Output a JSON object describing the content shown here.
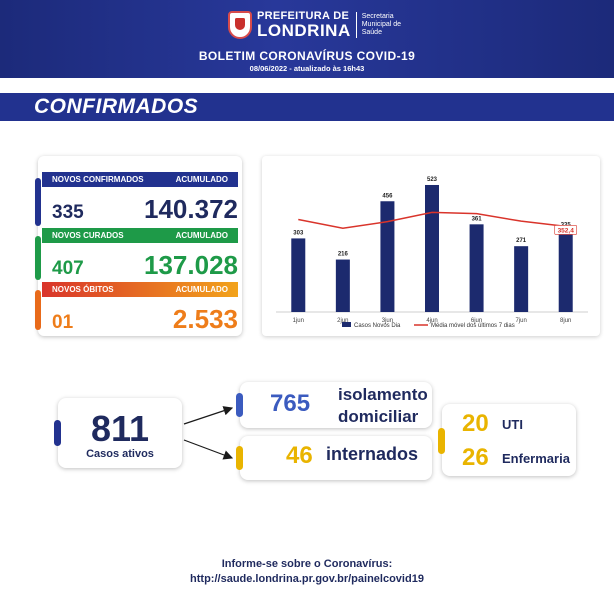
{
  "header": {
    "logo_line1": "PREFEITURA DE",
    "logo_line2": "LONDRINA",
    "logo_secretaria": "Secretaria Municipal de Saúde",
    "title": "BOLETIM CORONAVÍRUS COVID-19",
    "date": "08/06/2022 - atualizado às 16h43"
  },
  "section_title": "CONFIRMADOS",
  "stats": {
    "confirmados": {
      "label": "NOVOS CONFIRMADOS",
      "acc_label": "ACUMULADO",
      "new": "335",
      "total": "140.372",
      "color": "#22328f"
    },
    "curados": {
      "label": "NOVOS CURADOS",
      "acc_label": "ACUMULADO",
      "new": "407",
      "total": "137.028",
      "color": "#1e9a48"
    },
    "obitos": {
      "label": "NOVOS ÓBITOS",
      "acc_label": "ACUMULADO",
      "new": "01",
      "total": "2.533",
      "color": "#e86a1a"
    }
  },
  "chart_data": {
    "type": "bar",
    "categories": [
      "1jun",
      "2jun",
      "3jun",
      "4jun",
      "6jun",
      "7jun",
      "8jun"
    ],
    "series": [
      {
        "name": "Casos Novos Dia",
        "values": [
          303,
          216,
          456,
          523,
          361,
          271,
          335
        ],
        "color": "#1c2a6e"
      },
      {
        "name": "Média móvel dos últimos 7 dias",
        "type": "line",
        "values": [
          381,
          345,
          372,
          410,
          405,
          374,
          352.4
        ],
        "color": "#d9342b"
      }
    ],
    "highlight_label": "352,4",
    "ylim": [
      0,
      560
    ]
  },
  "summary": {
    "ativos": {
      "value": "811",
      "label": "Casos ativos"
    },
    "isolamento": {
      "value": "765",
      "label_line1": "isolamento",
      "label_line2": "domiciliar"
    },
    "internados": {
      "value": "46",
      "label": "internados"
    },
    "uti": {
      "value": "20",
      "label": "UTI"
    },
    "enfermaria": {
      "value": "26",
      "label": "Enfermaria"
    }
  },
  "footer": {
    "line1": "Informe-se sobre o Coronavírus:",
    "line2": "http://saude.londrina.pr.gov.br/painelcovid19"
  }
}
